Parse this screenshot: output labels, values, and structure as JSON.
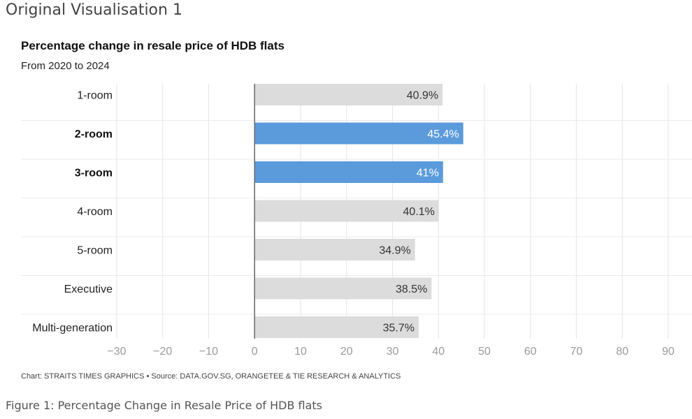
{
  "page": {
    "heading": "Original Visualisation 1",
    "credit": "Chart: STRAITS TIMES GRAPHICS • Source: DATA.GOV.SG, ORANGETEE & TIE RESEARCH & ANALYTICS",
    "figure_caption": "Figure 1: Percentage Change in Resale Price of HDB flats"
  },
  "chart_data": {
    "type": "bar",
    "orientation": "horizontal",
    "title": "Percentage change in resale price of HDB flats",
    "subtitle": "From 2020 to 2024",
    "categories": [
      "1-room",
      "2-room",
      "3-room",
      "4-room",
      "5-room",
      "Executive",
      "Multi-generation"
    ],
    "values": [
      40.9,
      45.4,
      41,
      40.1,
      34.9,
      38.5,
      35.7
    ],
    "value_labels": [
      "40.9%",
      "45.4%",
      "41%",
      "40.1%",
      "34.9%",
      "38.5%",
      "35.7%"
    ],
    "highlighted": [
      false,
      true,
      true,
      false,
      false,
      false,
      false
    ],
    "xlim": [
      -30,
      90
    ],
    "xticks": [
      -30,
      -20,
      -10,
      0,
      10,
      20,
      30,
      40,
      50,
      60,
      70,
      80,
      90
    ],
    "xtick_labels": [
      "−30",
      "−20",
      "−10",
      "0",
      "10",
      "20",
      "30",
      "40",
      "50",
      "60",
      "70",
      "80",
      "90"
    ],
    "grid": true,
    "colors": {
      "default_bar": "#dcdcdc",
      "highlight_bar": "#5b9bdc",
      "default_text": "#333333",
      "highlight_text": "#ffffff"
    }
  }
}
